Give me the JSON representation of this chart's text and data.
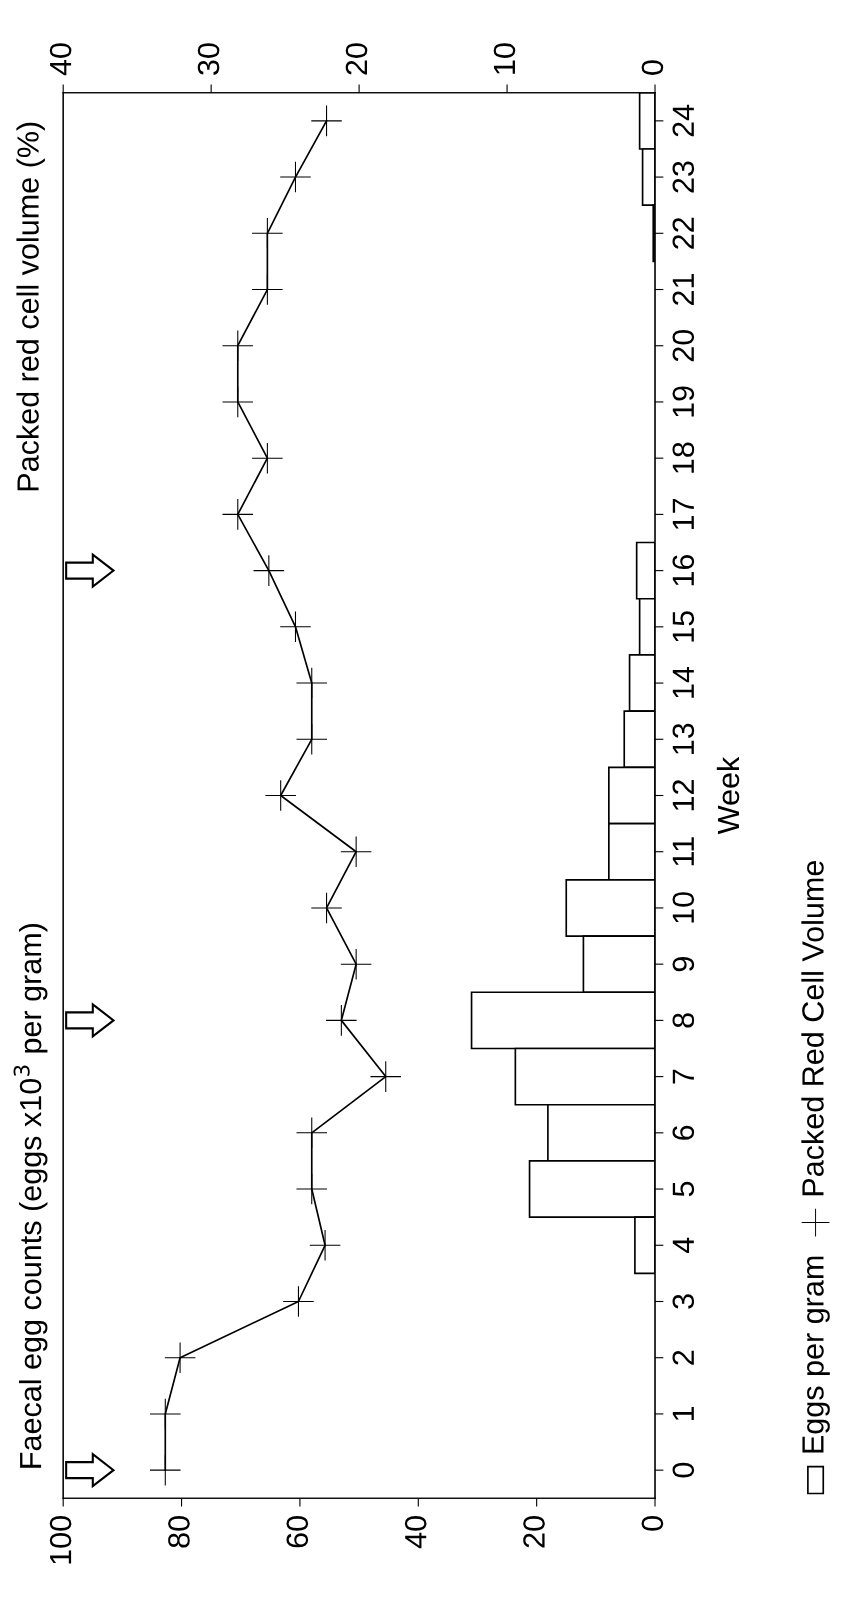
{
  "chart_data": {
    "type": "bar",
    "orientation": "horizontal",
    "ylabel": "Week",
    "categories": [
      "24",
      "23",
      "22",
      "21",
      "20",
      "19",
      "18",
      "17",
      "16",
      "15",
      "14",
      "13",
      "12",
      "11",
      "10",
      "9",
      "8",
      "7",
      "6",
      "5",
      "4",
      "3",
      "2",
      "1",
      "0"
    ],
    "series": [
      {
        "name": "Eggs per gram",
        "color": "#ffffff",
        "values": [
          2.6,
          2.1,
          0.3,
          0,
          0,
          0,
          0,
          0,
          3.1,
          2.6,
          4.3,
          5.2,
          7.8,
          7.8,
          15.0,
          12.1,
          31.0,
          23.6,
          18.1,
          21.2,
          3.4,
          0,
          0,
          0,
          0
        ]
      },
      {
        "name": "Packed Red Cell Volume",
        "type": "line",
        "axis": "x2",
        "color": "#000000",
        "values": [
          22.2,
          24.3,
          26.2,
          26.2,
          28.2,
          28.2,
          26.2,
          28.2,
          26.1,
          24.3,
          23.2,
          23.2,
          25.3,
          20.2,
          22.2,
          20.2,
          21.2,
          18.2,
          23.2,
          23.2,
          22.3,
          24.1,
          32.1,
          33.1,
          33.1
        ]
      }
    ],
    "xlim": [
      100,
      0
    ],
    "xticks": [
      0,
      20,
      40,
      60,
      80,
      100
    ],
    "x2lim": [
      40,
      0
    ],
    "x2ticks": [
      0,
      10,
      20,
      30,
      40
    ],
    "marker": "cross",
    "line_style": "solid",
    "legend": "right",
    "grid": false,
    "annotations": [
      "Faecal egg counts (eggs x10$^{3}$ per gram)",
      "Packed red cell volume (%)"
    ]
  }
}
